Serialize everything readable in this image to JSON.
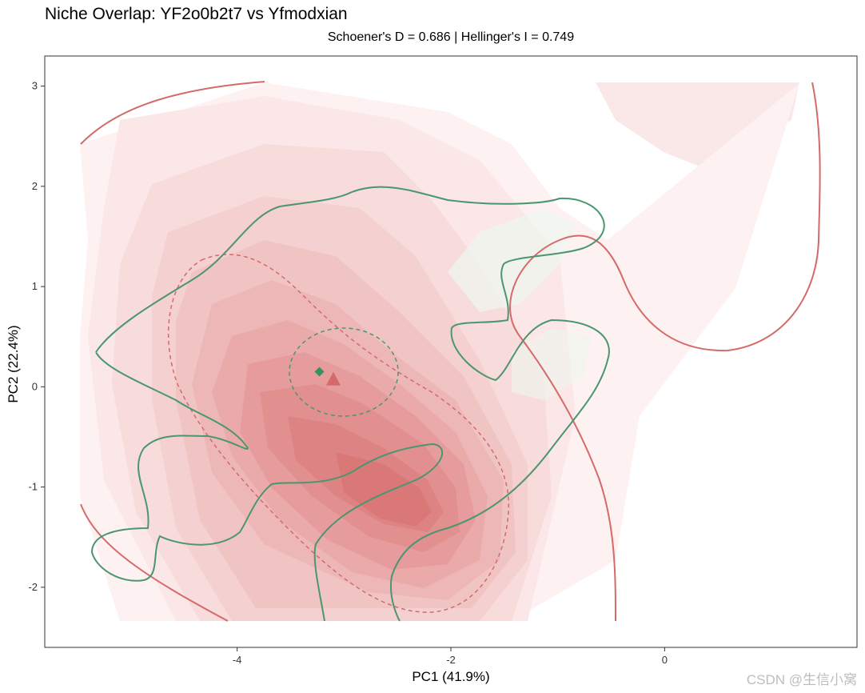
{
  "chart_data": {
    "type": "contour",
    "title": "Niche Overlap: YF2o0b2t7 vs Yfmodxian",
    "subtitle": "Schoener's D = 0.686 | Hellinger's I = 0.749",
    "xlabel": "PC1 (41.9%)",
    "ylabel": "PC2 (22.4%)",
    "xlim": [
      -5.8,
      1.8
    ],
    "ylim": [
      -2.6,
      3.3
    ],
    "x_ticks": [
      -4,
      -2,
      0
    ],
    "y_ticks": [
      -2,
      -1,
      0,
      1,
      2,
      3
    ],
    "grid": false,
    "series": [
      {
        "centroid": [
          -3.1,
          0.07
        ],
        "marker": "triangle",
        "color": "#d46a6a",
        "density_peaks": [
          [
            -3.6,
            -0.1
          ],
          [
            -2.75,
            -1.15
          ]
        ]
      },
      {
        "centroid": [
          -3.23,
          0.15
        ],
        "marker": "diamond",
        "color": "#3e8e5e"
      }
    ],
    "watermark": "CSDN @生信小窝"
  }
}
